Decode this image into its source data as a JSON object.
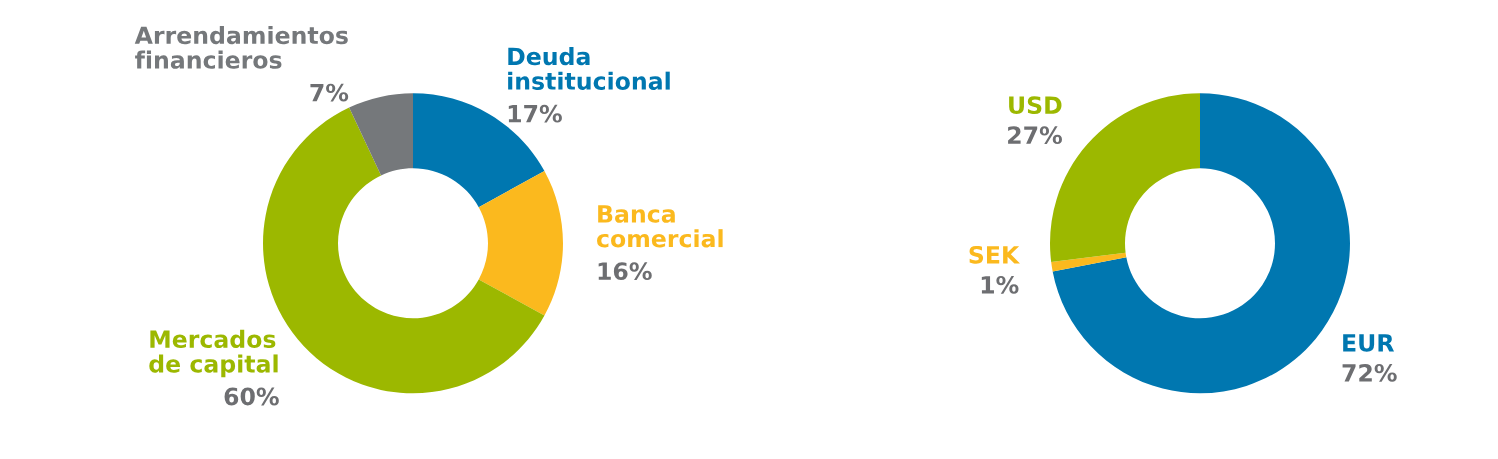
{
  "chart_data": [
    {
      "type": "donut",
      "categories": [
        "Deuda\ninstitucional",
        "Banca\ncomercial",
        "Mercados\nde capital",
        "Arrendamientos\nfinancieros"
      ],
      "values": [
        17,
        16,
        60,
        7
      ],
      "colors": [
        "#0077b0",
        "#fbb91e",
        "#9cb800",
        "#75787b"
      ],
      "value_labels": [
        "17%",
        "16%",
        "60%",
        "7%"
      ]
    },
    {
      "type": "donut",
      "categories": [
        "EUR",
        "SEK",
        "USD"
      ],
      "values": [
        72,
        1,
        27
      ],
      "colors": [
        "#0077b0",
        "#fbb91e",
        "#9cb800"
      ],
      "value_labels": [
        "72%",
        "1%",
        "27%"
      ]
    }
  ]
}
